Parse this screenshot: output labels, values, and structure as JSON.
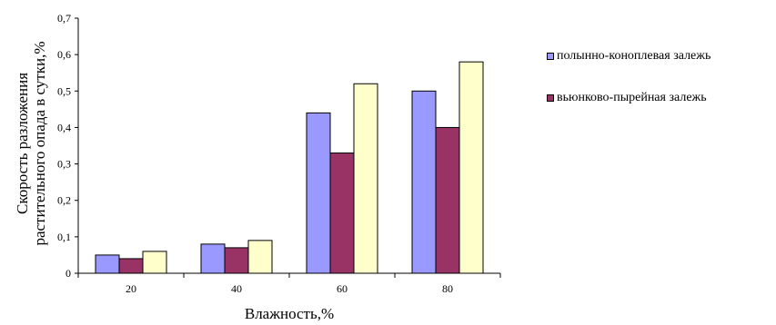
{
  "chart_data": {
    "type": "bar",
    "title": "",
    "xlabel": "Влажность,%",
    "ylabel": [
      "Скорость разложения",
      "растительного опада в сутки,%"
    ],
    "categories": [
      "20",
      "40",
      "60",
      "80"
    ],
    "ylim": [
      0,
      0.7
    ],
    "yticks": [
      "0",
      "0,1",
      "0,2",
      "0,3",
      "0,4",
      "0,5",
      "0,6",
      "0,7"
    ],
    "grid": false,
    "legend_position": "right",
    "series": [
      {
        "name": "полынно-коноплевая залежь",
        "color": "#9999ff",
        "values": [
          0.05,
          0.08,
          0.44,
          0.5
        ]
      },
      {
        "name": "вьюнково-пырейная залежь",
        "color": "#993366",
        "values": [
          0.04,
          0.07,
          0.33,
          0.4
        ]
      },
      {
        "color": "#ffffcc",
        "values": [
          0.06,
          0.09,
          0.52,
          0.58
        ]
      }
    ]
  }
}
